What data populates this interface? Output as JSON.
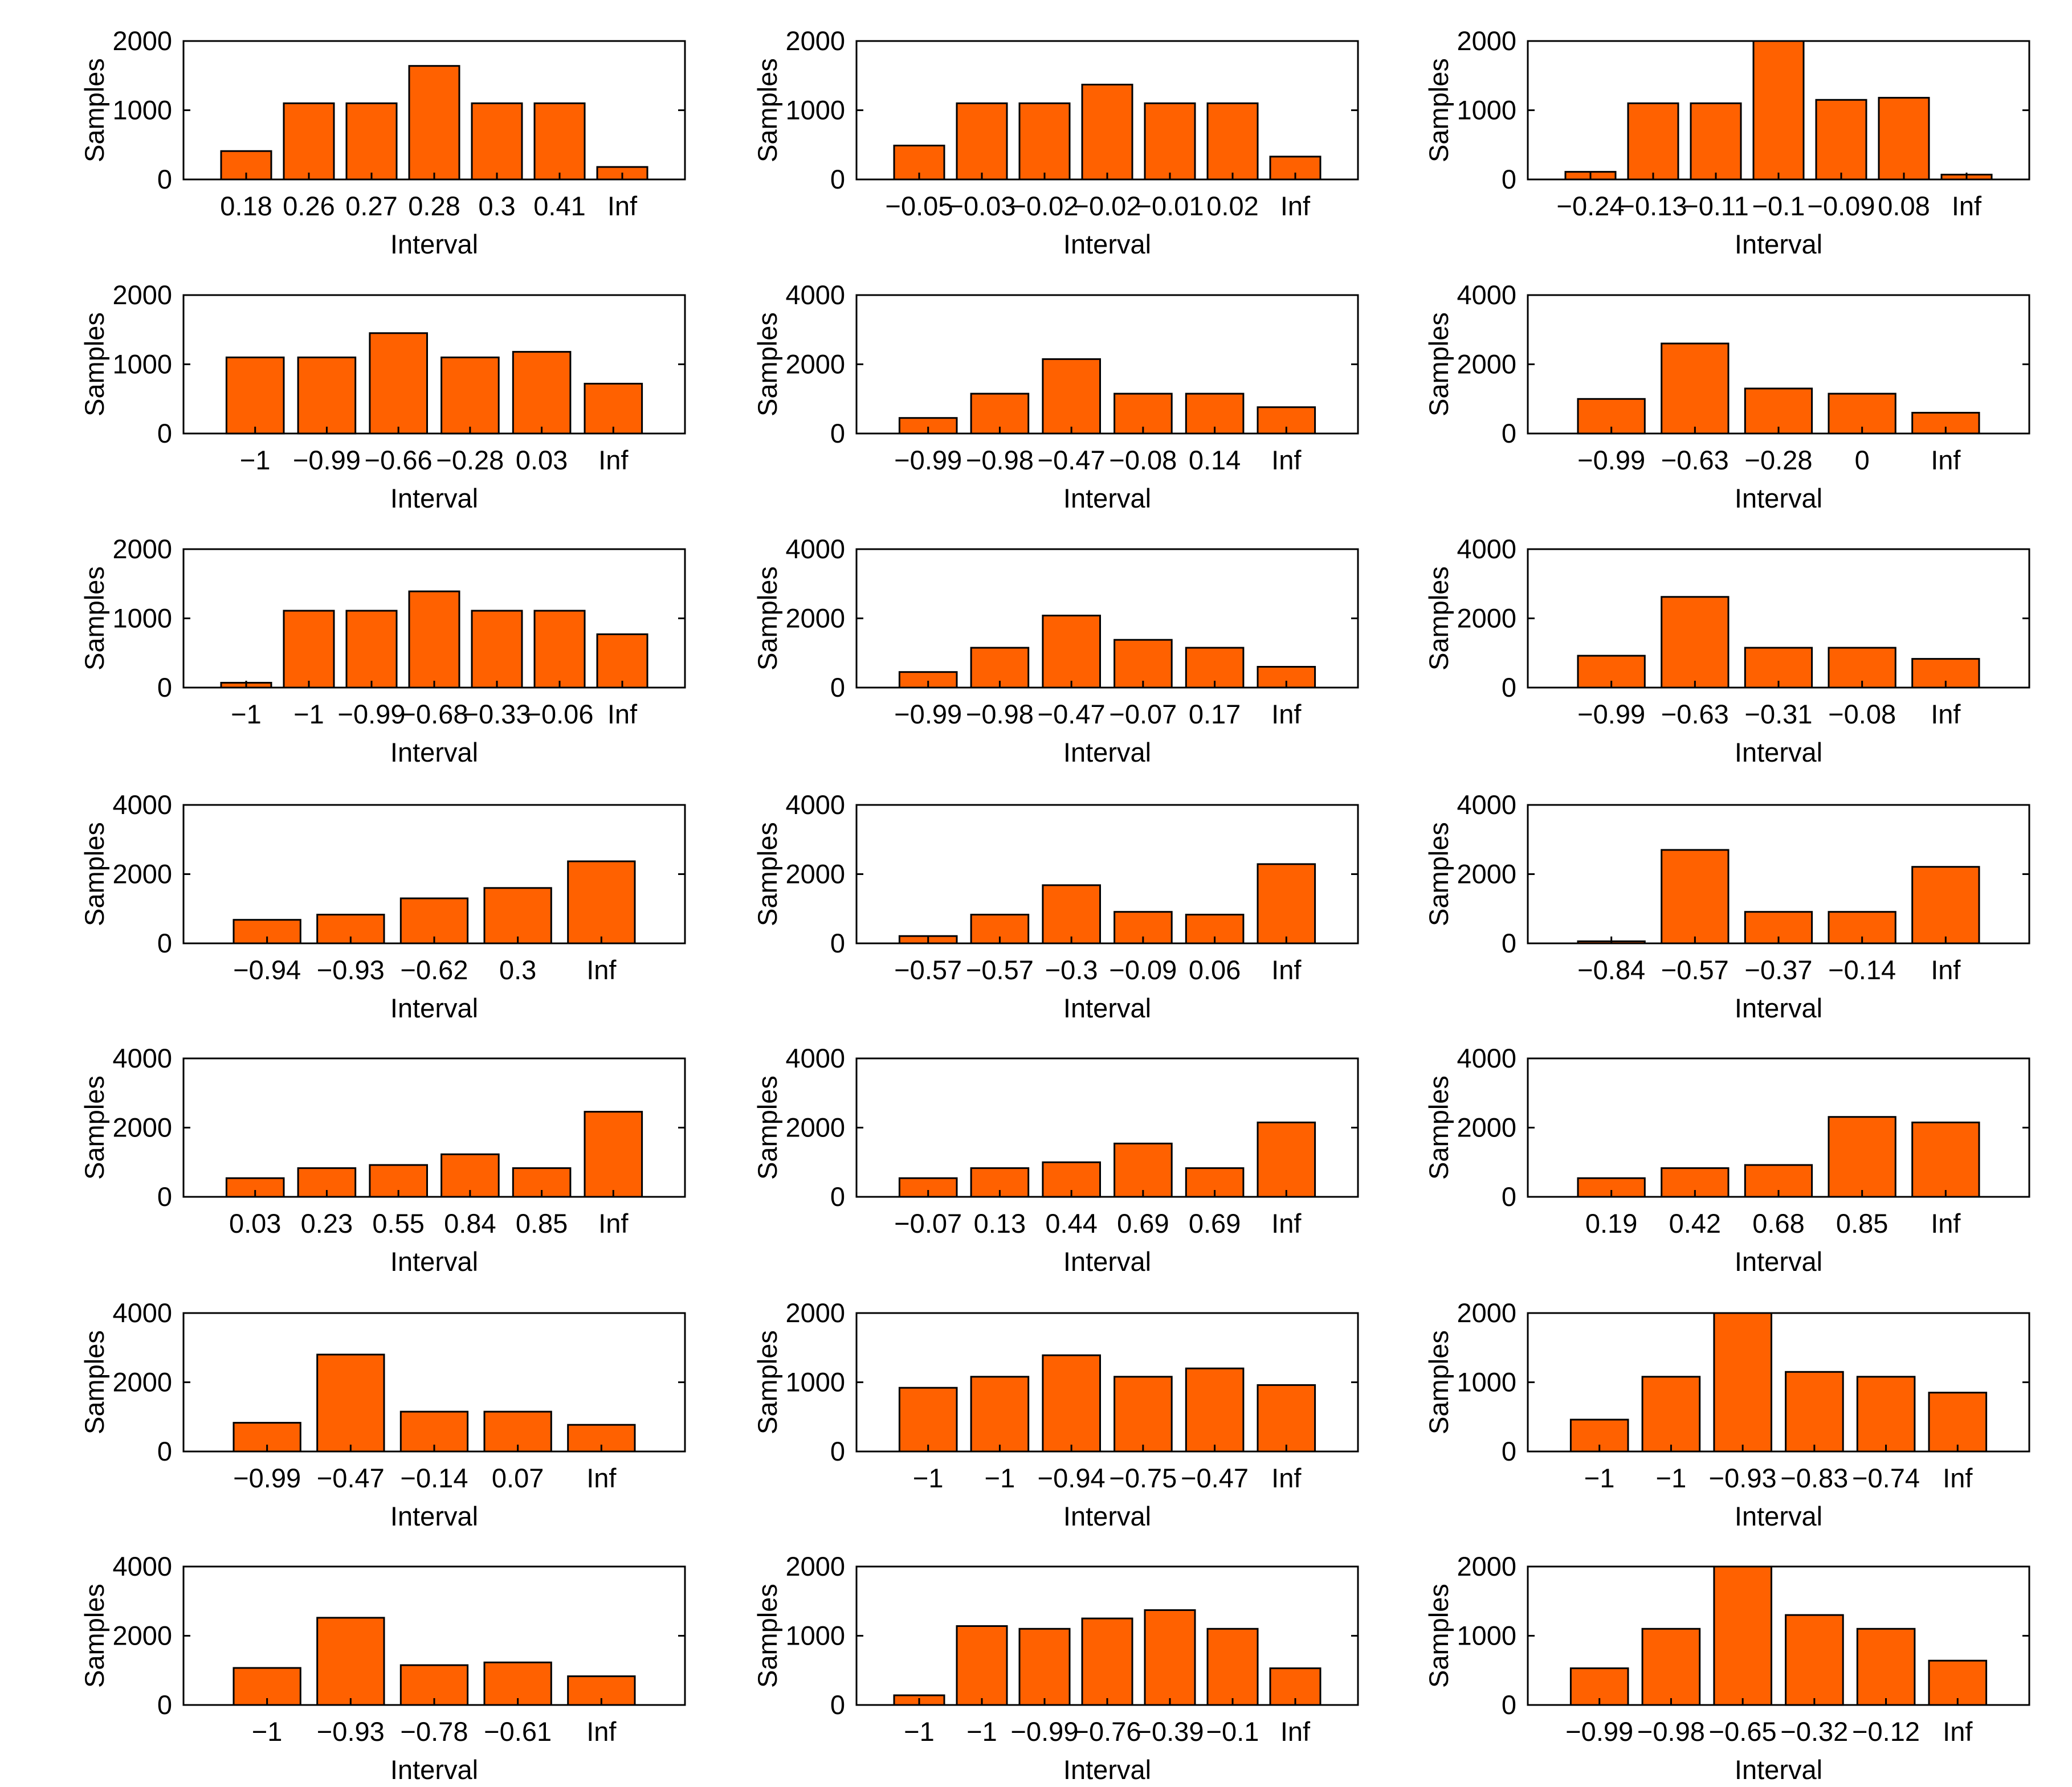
{
  "colors": {
    "bar": "#ff6100",
    "frame": "#000000",
    "background": "#ffffff"
  },
  "chart_data": [
    {
      "type": "bar",
      "xlabel": "Interval",
      "ylabel": "Samples",
      "ylim": [
        0,
        2000
      ],
      "yticks": [
        0,
        1000,
        2000
      ],
      "slots": 8,
      "categories": [
        "0.18",
        "0.26",
        "0.27",
        "0.28",
        "0.3",
        "0.41",
        "Inf"
      ],
      "values": [
        410,
        1100,
        1100,
        1640,
        1100,
        1100,
        180
      ]
    },
    {
      "type": "bar",
      "xlabel": "Interval",
      "ylabel": "Samples",
      "ylim": [
        0,
        2000
      ],
      "yticks": [
        0,
        1000,
        2000
      ],
      "slots": 8,
      "categories": [
        "−0.05",
        "−0.03",
        "−0.02",
        "−0.02",
        "−0.01",
        "0.02",
        "Inf"
      ],
      "values": [
        490,
        1100,
        1100,
        1370,
        1100,
        1100,
        330
      ]
    },
    {
      "type": "bar",
      "xlabel": "Interval",
      "ylabel": "Samples",
      "ylim": [
        0,
        2000
      ],
      "yticks": [
        0,
        1000,
        2000
      ],
      "slots": 8,
      "categories": [
        "−0.24",
        "−0.13",
        "−0.11",
        "−0.1",
        "−0.09",
        "0.08",
        "Inf"
      ],
      "values": [
        110,
        1100,
        1100,
        2000,
        1150,
        1180,
        70
      ]
    },
    {
      "type": "bar",
      "xlabel": "Interval",
      "ylabel": "Samples",
      "ylim": [
        0,
        2000
      ],
      "yticks": [
        0,
        1000,
        2000
      ],
      "slots": 7,
      "categories": [
        "−1",
        "−0.99",
        "−0.66",
        "−0.28",
        "0.03",
        "Inf"
      ],
      "values": [
        1100,
        1100,
        1450,
        1100,
        1180,
        720
      ]
    },
    {
      "type": "bar",
      "xlabel": "Interval",
      "ylabel": "Samples",
      "ylim": [
        0,
        4000
      ],
      "yticks": [
        0,
        2000,
        4000
      ],
      "slots": 7,
      "categories": [
        "−0.99",
        "−0.98",
        "−0.47",
        "−0.08",
        "0.14",
        "Inf"
      ],
      "values": [
        450,
        1150,
        2150,
        1150,
        1150,
        760
      ]
    },
    {
      "type": "bar",
      "xlabel": "Interval",
      "ylabel": "Samples",
      "ylim": [
        0,
        4000
      ],
      "yticks": [
        0,
        2000,
        4000
      ],
      "slots": 6,
      "categories": [
        "−0.99",
        "−0.63",
        "−0.28",
        "0",
        "Inf"
      ],
      "values": [
        1000,
        2600,
        1300,
        1150,
        600
      ]
    },
    {
      "type": "bar",
      "xlabel": "Interval",
      "ylabel": "Samples",
      "ylim": [
        0,
        2000
      ],
      "yticks": [
        0,
        1000,
        2000
      ],
      "slots": 8,
      "categories": [
        "−1",
        "−1",
        "−0.99",
        "−0.68",
        "−0.33",
        "−0.06",
        "Inf"
      ],
      "values": [
        70,
        1110,
        1110,
        1390,
        1110,
        1110,
        770
      ]
    },
    {
      "type": "bar",
      "xlabel": "Interval",
      "ylabel": "Samples",
      "ylim": [
        0,
        4000
      ],
      "yticks": [
        0,
        2000,
        4000
      ],
      "slots": 7,
      "categories": [
        "−0.99",
        "−0.98",
        "−0.47",
        "−0.07",
        "0.17",
        "Inf"
      ],
      "values": [
        450,
        1150,
        2080,
        1380,
        1150,
        600
      ]
    },
    {
      "type": "bar",
      "xlabel": "Interval",
      "ylabel": "Samples",
      "ylim": [
        0,
        4000
      ],
      "yticks": [
        0,
        2000,
        4000
      ],
      "slots": 6,
      "categories": [
        "−0.99",
        "−0.63",
        "−0.31",
        "−0.08",
        "Inf"
      ],
      "values": [
        920,
        2620,
        1150,
        1150,
        830
      ]
    },
    {
      "type": "bar",
      "xlabel": "Interval",
      "ylabel": "Samples",
      "ylim": [
        0,
        4000
      ],
      "yticks": [
        0,
        2000,
        4000
      ],
      "slots": 6,
      "categories": [
        "−0.94",
        "−0.93",
        "−0.62",
        "0.3",
        "Inf"
      ],
      "values": [
        680,
        830,
        1300,
        1600,
        2370
      ]
    },
    {
      "type": "bar",
      "xlabel": "Interval",
      "ylabel": "Samples",
      "ylim": [
        0,
        4000
      ],
      "yticks": [
        0,
        2000,
        4000
      ],
      "slots": 7,
      "categories": [
        "−0.57",
        "−0.57",
        "−0.3",
        "−0.09",
        "0.06",
        "Inf"
      ],
      "values": [
        210,
        830,
        1680,
        910,
        830,
        2290
      ]
    },
    {
      "type": "bar",
      "xlabel": "Interval",
      "ylabel": "Samples",
      "ylim": [
        0,
        4000
      ],
      "yticks": [
        0,
        2000,
        4000
      ],
      "slots": 6,
      "categories": [
        "−0.84",
        "−0.57",
        "−0.37",
        "−0.14",
        "Inf"
      ],
      "values": [
        60,
        2700,
        910,
        910,
        2210
      ]
    },
    {
      "type": "bar",
      "xlabel": "Interval",
      "ylabel": "Samples",
      "ylim": [
        0,
        4000
      ],
      "yticks": [
        0,
        2000,
        4000
      ],
      "slots": 7,
      "categories": [
        "0.03",
        "0.23",
        "0.55",
        "0.84",
        "0.85",
        "Inf"
      ],
      "values": [
        540,
        830,
        920,
        1230,
        830,
        2460
      ]
    },
    {
      "type": "bar",
      "xlabel": "Interval",
      "ylabel": "Samples",
      "ylim": [
        0,
        4000
      ],
      "yticks": [
        0,
        2000,
        4000
      ],
      "slots": 7,
      "categories": [
        "−0.07",
        "0.13",
        "0.44",
        "0.69",
        "0.69",
        "Inf"
      ],
      "values": [
        540,
        830,
        1000,
        1540,
        830,
        2150
      ]
    },
    {
      "type": "bar",
      "xlabel": "Interval",
      "ylabel": "Samples",
      "ylim": [
        0,
        4000
      ],
      "yticks": [
        0,
        2000,
        4000
      ],
      "slots": 6,
      "categories": [
        "0.19",
        "0.42",
        "0.68",
        "0.85",
        "Inf"
      ],
      "values": [
        540,
        830,
        920,
        2310,
        2150
      ]
    },
    {
      "type": "bar",
      "xlabel": "Interval",
      "ylabel": "Samples",
      "ylim": [
        0,
        4000
      ],
      "yticks": [
        0,
        2000,
        4000
      ],
      "slots": 6,
      "categories": [
        "−0.99",
        "−0.47",
        "−0.14",
        "0.07",
        "Inf"
      ],
      "values": [
        830,
        2800,
        1150,
        1150,
        770
      ]
    },
    {
      "type": "bar",
      "xlabel": "Interval",
      "ylabel": "Samples",
      "ylim": [
        0,
        2000
      ],
      "yticks": [
        0,
        1000,
        2000
      ],
      "slots": 7,
      "categories": [
        "−1",
        "−1",
        "−0.94",
        "−0.75",
        "−0.47",
        "Inf"
      ],
      "values": [
        920,
        1080,
        1390,
        1080,
        1200,
        960
      ]
    },
    {
      "type": "bar",
      "xlabel": "Interval",
      "ylabel": "Samples",
      "ylim": [
        0,
        2000
      ],
      "yticks": [
        0,
        1000,
        2000
      ],
      "slots": 7,
      "categories": [
        "−1",
        "−1",
        "−0.93",
        "−0.83",
        "−0.74",
        "Inf"
      ],
      "values": [
        460,
        1080,
        2000,
        1150,
        1080,
        850
      ]
    },
    {
      "type": "bar",
      "xlabel": "Interval",
      "ylabel": "Samples",
      "ylim": [
        0,
        4000
      ],
      "yticks": [
        0,
        2000,
        4000
      ],
      "slots": 6,
      "categories": [
        "−1",
        "−0.93",
        "−0.78",
        "−0.61",
        "Inf"
      ],
      "values": [
        1070,
        2520,
        1150,
        1230,
        830
      ]
    },
    {
      "type": "bar",
      "xlabel": "Interval",
      "ylabel": "Samples",
      "ylim": [
        0,
        2000
      ],
      "yticks": [
        0,
        1000,
        2000
      ],
      "slots": 8,
      "categories": [
        "−1",
        "−1",
        "−0.99",
        "−0.76",
        "−0.39",
        "−0.1",
        "Inf"
      ],
      "values": [
        140,
        1140,
        1100,
        1250,
        1370,
        1100,
        530
      ]
    },
    {
      "type": "bar",
      "xlabel": "Interval",
      "ylabel": "Samples",
      "ylim": [
        0,
        2000
      ],
      "yticks": [
        0,
        1000,
        2000
      ],
      "slots": 7,
      "categories": [
        "−0.99",
        "−0.98",
        "−0.65",
        "−0.32",
        "−0.12",
        "Inf"
      ],
      "values": [
        530,
        1100,
        2000,
        1300,
        1100,
        640
      ]
    }
  ]
}
